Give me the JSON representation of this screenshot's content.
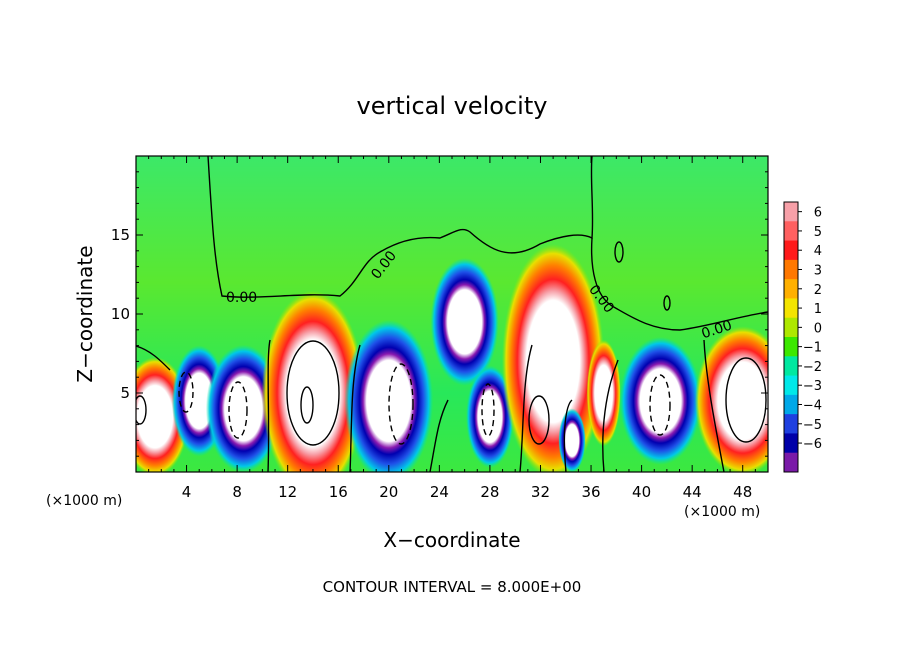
{
  "chart_data": {
    "type": "heatmap",
    "title": "vertical velocity",
    "xlabel": "X−coordinate",
    "ylabel": "Z−coordinate",
    "x_unit_label": "(×1000 m)",
    "z_unit_label": "(×1000 m)",
    "footer": "CONTOUR INTERVAL = 8.000E+00",
    "contour_label": "0.00",
    "xlim": [
      0,
      50
    ],
    "ylim": [
      0,
      20
    ],
    "x_ticks": [
      4,
      8,
      12,
      16,
      20,
      24,
      28,
      32,
      36,
      40,
      44,
      48
    ],
    "y_ticks": [
      5,
      10,
      15
    ],
    "colorbar": {
      "labels": [
        "6",
        "5",
        "4",
        "3",
        "2",
        "1",
        "0",
        "−1",
        "−2",
        "−3",
        "−4",
        "−5",
        "−6"
      ],
      "levels": [
        6,
        5,
        4,
        3,
        2,
        1,
        0,
        -1,
        -2,
        -3,
        -4,
        -5,
        -6
      ],
      "colors": [
        "#f7a0a8",
        "#ff6060",
        "#ff1a1a",
        "#ff7800",
        "#ffb000",
        "#f4e400",
        "#aee800",
        "#3ce800",
        "#00e8a0",
        "#00e8e8",
        "#00a8e8",
        "#1e40e0",
        "#0000a8",
        "#7a1aa8"
      ]
    },
    "features": [
      {
        "kind": "updraft",
        "x": 1.5,
        "z": 3.5,
        "rx": 2.0,
        "rz": 2.8
      },
      {
        "kind": "downdraft",
        "x": 5.0,
        "z": 4.5,
        "rx": 1.6,
        "rz": 2.6
      },
      {
        "kind": "downdraft",
        "x": 8.5,
        "z": 4.0,
        "rx": 2.2,
        "rz": 3.0
      },
      {
        "kind": "updraft",
        "x": 14.0,
        "z": 5.0,
        "rx": 3.0,
        "rz": 4.8
      },
      {
        "kind": "downdraft",
        "x": 20.0,
        "z": 4.5,
        "rx": 2.6,
        "rz": 3.8
      },
      {
        "kind": "downdraft",
        "x": 26.0,
        "z": 9.5,
        "rx": 2.0,
        "rz": 3.0
      },
      {
        "kind": "downdraft",
        "x": 28.0,
        "z": 3.5,
        "rx": 1.4,
        "rz": 2.4
      },
      {
        "kind": "updraft",
        "x": 33.0,
        "z": 7.0,
        "rx": 3.0,
        "rz": 5.5
      },
      {
        "kind": "downdraft",
        "x": 34.5,
        "z": 2.0,
        "rx": 0.8,
        "rz": 1.5
      },
      {
        "kind": "updraft",
        "x": 37.0,
        "z": 5.0,
        "rx": 1.0,
        "rz": 2.5
      },
      {
        "kind": "downdraft",
        "x": 41.5,
        "z": 4.5,
        "rx": 2.4,
        "rz": 3.0
      },
      {
        "kind": "updraft",
        "x": 48.0,
        "z": 4.5,
        "rx": 2.8,
        "rz": 3.5
      }
    ]
  }
}
